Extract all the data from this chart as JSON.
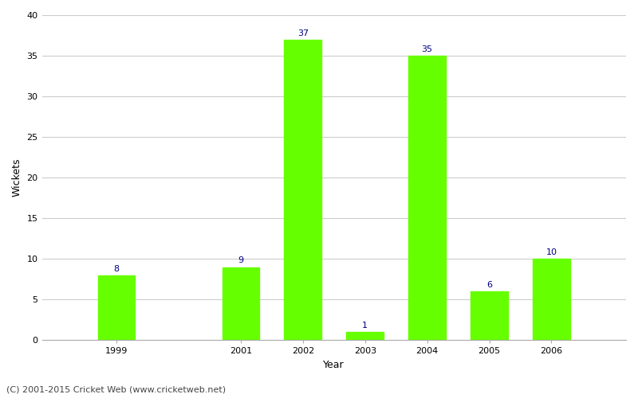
{
  "years": [
    1999,
    2001,
    2002,
    2003,
    2004,
    2005,
    2006
  ],
  "wickets": [
    8,
    9,
    37,
    1,
    35,
    6,
    10
  ],
  "bar_color": "#66ff00",
  "label_color": "#000080",
  "xlabel": "Year",
  "ylabel": "Wickets",
  "ylim": [
    0,
    40
  ],
  "yticks": [
    0,
    5,
    10,
    15,
    20,
    25,
    30,
    35,
    40
  ],
  "grid_color": "#cccccc",
  "bg_color": "#ffffff",
  "footer": "(C) 2001-2015 Cricket Web (www.cricketweb.net)",
  "label_fontsize": 8,
  "axis_label_fontsize": 9,
  "tick_fontsize": 8,
  "footer_fontsize": 8,
  "bar_width": 0.6
}
